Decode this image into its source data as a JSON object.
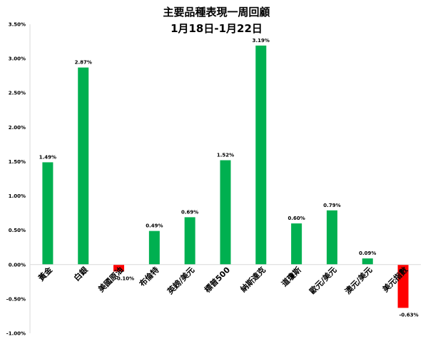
{
  "chart_data": {
    "type": "bar",
    "title": "主要品種表現一周回顧",
    "subtitle": "1月18日-1月22日",
    "categories": [
      "黃金",
      "白銀",
      "美國原油",
      "布倫特",
      "英鎊/美元",
      "標普500",
      "納斯達克",
      "道瓊斯",
      "歐元/美元",
      "澳元/美元",
      "美元指數"
    ],
    "values": [
      1.49,
      2.87,
      -0.1,
      0.49,
      0.69,
      1.52,
      3.19,
      0.6,
      0.79,
      0.09,
      -0.63
    ],
    "data_labels": [
      "1.49%",
      "2.87%",
      "-0.10%",
      "0.49%",
      "0.69%",
      "1.52%",
      "3.19%",
      "0.60%",
      "0.79%",
      "0.09%",
      "-0.63%"
    ],
    "ylim": [
      -1.0,
      3.5
    ],
    "yticks": [
      3.5,
      3.0,
      2.5,
      2.0,
      1.5,
      1.0,
      0.5,
      0.0,
      -0.5,
      -1.0
    ],
    "ytick_labels": [
      "3.50%",
      "3.00%",
      "2.50%",
      "2.00%",
      "1.50%",
      "1.00%",
      "0.50%",
      "0.00%",
      "-0.50%",
      "-1.00%"
    ],
    "xlabel": "",
    "ylabel": "",
    "grid": false,
    "colors": {
      "positive": "#00B050",
      "negative": "#FF0000",
      "axis": "#D9D9D9",
      "text": "#000000"
    }
  }
}
